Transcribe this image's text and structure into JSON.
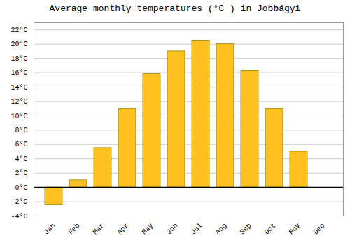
{
  "chart_data": {
    "type": "bar",
    "title": "Average monthly temperatures (°C ) in Jobbágyi",
    "categories": [
      "Jan",
      "Feb",
      "Mar",
      "Apr",
      "May",
      "Jun",
      "Jul",
      "Aug",
      "Sep",
      "Oct",
      "Nov",
      "Dec"
    ],
    "values": [
      -2.5,
      1.0,
      5.5,
      11.0,
      15.8,
      19.0,
      20.5,
      20.0,
      16.3,
      11.0,
      5.0,
      0.0
    ],
    "color": "#FFC020",
    "ylim": [
      -4,
      23
    ],
    "yticks": [
      {
        "value": -4,
        "label": "-4°C"
      },
      {
        "value": -2,
        "label": "-2°C"
      },
      {
        "value": 0,
        "label": "0°C"
      },
      {
        "value": 2,
        "label": "2°C"
      },
      {
        "value": 4,
        "label": "4°C"
      },
      {
        "value": 6,
        "label": "6°C"
      },
      {
        "value": 8,
        "label": "8°C"
      },
      {
        "value": 10,
        "label": "10°C"
      },
      {
        "value": 12,
        "label": "12°C"
      },
      {
        "value": 14,
        "label": "14°C"
      },
      {
        "value": 16,
        "label": "16°C"
      },
      {
        "value": 18,
        "label": "18°C"
      },
      {
        "value": 20,
        "label": "20°C"
      },
      {
        "value": 22,
        "label": "22°C"
      }
    ],
    "grid": true
  }
}
